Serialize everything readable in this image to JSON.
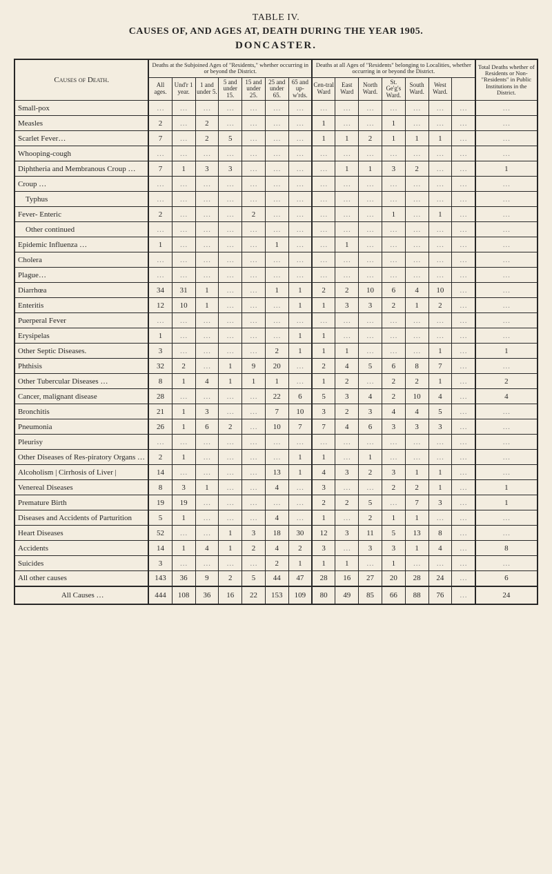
{
  "title": {
    "line1": "TABLE IV.",
    "line2": "CAUSES OF, AND AGES AT, DEATH DURING THE YEAR 1905.",
    "line3": "DONCASTER."
  },
  "headers": {
    "cause": "Causes of Death.",
    "group1": "Deaths at the Subjoined Ages of \"Residents,\" whether occurring in or beyond the District.",
    "group2": "Deaths at all Ages of \"Residents\" belonging to Localities, whether occurring in or beyond the District.",
    "group3": "Total Deaths whether of Residents or Non-\"Residents\" in Public Institutions in the District.",
    "ages": [
      "All ages.",
      "Und'r 1 year.",
      "1 and under 5.",
      "5 and under 15.",
      "15 and under 25.",
      "25 and under 65.",
      "65 and up-w'rds."
    ],
    "wards": [
      "Cen-tral Ward",
      "East Ward",
      "North Ward.",
      "St. Ge'g's Ward.",
      "South Ward.",
      "West Ward.",
      ""
    ]
  },
  "rows": [
    {
      "c": "Small-pox",
      "v": [
        "",
        "",
        "",
        "",
        "",
        "",
        "",
        "",
        "",
        "",
        "",
        "",
        "",
        "",
        ""
      ]
    },
    {
      "c": "Measles",
      "v": [
        "2",
        "",
        "2",
        "",
        "",
        "",
        "",
        "1",
        "",
        "",
        "1",
        "",
        "",
        "",
        ""
      ]
    },
    {
      "c": "Scarlet Fever…",
      "v": [
        "7",
        "",
        "2",
        "5",
        "",
        "",
        "",
        "1",
        "1",
        "2",
        "1",
        "1",
        "1",
        "",
        ""
      ]
    },
    {
      "c": "Whooping-cough",
      "v": [
        "",
        "",
        "",
        "",
        "",
        "",
        "",
        "",
        "",
        "",
        "",
        "",
        "",
        "",
        ""
      ]
    },
    {
      "c": "Diphtheria and Membranous Croup …",
      "v": [
        "7",
        "1",
        "3",
        "3",
        "",
        "",
        "",
        "",
        "1",
        "1",
        "3",
        "2",
        "",
        "",
        "1"
      ]
    },
    {
      "c": "Croup …",
      "v": [
        "",
        "",
        "",
        "",
        "",
        "",
        "",
        "",
        "",
        "",
        "",
        "",
        "",
        "",
        ""
      ]
    },
    {
      "c": "    Typhus",
      "v": [
        "",
        "",
        "",
        "",
        "",
        "",
        "",
        "",
        "",
        "",
        "",
        "",
        "",
        "",
        ""
      ]
    },
    {
      "c": "Fever- Enteric",
      "v": [
        "2",
        "",
        "",
        "",
        "2",
        "",
        "",
        "",
        "",
        "",
        "1",
        "",
        "1",
        "",
        ""
      ]
    },
    {
      "c": "    Other continued",
      "v": [
        "",
        "",
        "",
        "",
        "",
        "",
        "",
        "",
        "",
        "",
        "",
        "",
        "",
        "",
        ""
      ]
    },
    {
      "c": "Epidemic Influenza …",
      "v": [
        "1",
        "",
        "",
        "",
        "",
        "1",
        "",
        "",
        "1",
        "",
        "",
        "",
        "",
        "",
        ""
      ]
    },
    {
      "c": "Cholera",
      "v": [
        "",
        "",
        "",
        "",
        "",
        "",
        "",
        "",
        "",
        "",
        "",
        "",
        "",
        "",
        ""
      ]
    },
    {
      "c": "Plague…",
      "v": [
        "",
        "",
        "",
        "",
        "",
        "",
        "",
        "",
        "",
        "",
        "",
        "",
        "",
        "",
        ""
      ]
    },
    {
      "c": "Diarrhœa",
      "v": [
        "34",
        "31",
        "1",
        "",
        "",
        "1",
        "1",
        "2",
        "2",
        "10",
        "6",
        "4",
        "10",
        "",
        ""
      ]
    },
    {
      "c": "Enteritis",
      "v": [
        "12",
        "10",
        "1",
        "",
        "",
        "",
        "1",
        "1",
        "3",
        "3",
        "2",
        "1",
        "2",
        "",
        ""
      ]
    },
    {
      "c": "Puerperal Fever",
      "v": [
        "",
        "",
        "",
        "",
        "",
        "",
        "",
        "",
        "",
        "",
        "",
        "",
        "",
        "",
        ""
      ]
    },
    {
      "c": "Erysipelas",
      "v": [
        "1",
        "",
        "",
        "",
        "",
        "",
        "1",
        "1",
        "",
        "",
        "",
        "",
        "",
        "",
        ""
      ]
    },
    {
      "c": "Other Septic Diseases.",
      "v": [
        "3",
        "",
        "",
        "",
        "",
        "2",
        "1",
        "1",
        "1",
        "",
        "",
        "",
        "1",
        "",
        "1"
      ]
    },
    {
      "c": "Phthisis",
      "v": [
        "32",
        "2",
        "",
        "1",
        "9",
        "20",
        "",
        "2",
        "4",
        "5",
        "6",
        "8",
        "7",
        "",
        ""
      ]
    },
    {
      "c": "Other Tubercular Diseases …",
      "v": [
        "8",
        "1",
        "4",
        "1",
        "1",
        "1",
        "",
        "1",
        "2",
        "",
        "2",
        "2",
        "1",
        "",
        "2"
      ]
    },
    {
      "c": "Cancer, malignant disease",
      "v": [
        "28",
        "",
        "",
        "",
        "",
        "22",
        "6",
        "5",
        "3",
        "4",
        "2",
        "10",
        "4",
        "",
        "4"
      ]
    },
    {
      "c": "Bronchitis",
      "v": [
        "21",
        "1",
        "3",
        "",
        "",
        "7",
        "10",
        "3",
        "2",
        "3",
        "4",
        "4",
        "5",
        "",
        ""
      ]
    },
    {
      "c": "Pneumonia",
      "v": [
        "26",
        "1",
        "6",
        "2",
        "",
        "10",
        "7",
        "7",
        "4",
        "6",
        "3",
        "3",
        "3",
        "",
        ""
      ]
    },
    {
      "c": "Pleurisy",
      "v": [
        "",
        "",
        "",
        "",
        "",
        "",
        "",
        "",
        "",
        "",
        "",
        "",
        "",
        "",
        ""
      ]
    },
    {
      "c": "Other Diseases of Res-piratory Organs …",
      "v": [
        "2",
        "1",
        "",
        "",
        "",
        "",
        "1",
        "1",
        "",
        "1",
        "",
        "",
        "",
        "",
        ""
      ]
    },
    {
      "c": "Alcoholism | Cirrhosis of Liver |",
      "v": [
        "14",
        "",
        "",
        "",
        "",
        "13",
        "1",
        "4",
        "3",
        "2",
        "3",
        "1",
        "1",
        "",
        ""
      ]
    },
    {
      "c": "Venereal Diseases",
      "v": [
        "8",
        "3",
        "1",
        "",
        "",
        "4",
        "",
        "3",
        "",
        "",
        "2",
        "2",
        "1",
        "",
        "1"
      ]
    },
    {
      "c": "Premature Birth",
      "v": [
        "19",
        "19",
        "",
        "",
        "",
        "",
        "",
        "2",
        "2",
        "5",
        "",
        "7",
        "3",
        "",
        "1"
      ]
    },
    {
      "c": "Diseases and Accidents of Parturition",
      "v": [
        "5",
        "1",
        "",
        "",
        "",
        "4",
        "",
        "1",
        "",
        "2",
        "1",
        "1",
        "",
        "",
        ""
      ]
    },
    {
      "c": "Heart Diseases",
      "v": [
        "52",
        "",
        "",
        "1",
        "3",
        "18",
        "30",
        "12",
        "3",
        "11",
        "5",
        "13",
        "8",
        "",
        ""
      ]
    },
    {
      "c": "Accidents",
      "v": [
        "14",
        "1",
        "4",
        "1",
        "2",
        "4",
        "2",
        "3",
        "",
        "3",
        "3",
        "1",
        "4",
        "",
        "8"
      ]
    },
    {
      "c": "Suicides",
      "v": [
        "3",
        "",
        "",
        "",
        "",
        "2",
        "1",
        "1",
        "1",
        "",
        "1",
        "",
        "",
        "",
        ""
      ]
    },
    {
      "c": "All other causes",
      "v": [
        "143",
        "36",
        "9",
        "2",
        "5",
        "44",
        "47",
        "28",
        "16",
        "27",
        "20",
        "28",
        "24",
        "",
        "6"
      ]
    }
  ],
  "total": {
    "c": "All Causes …",
    "v": [
      "444",
      "108",
      "36",
      "16",
      "22",
      "153",
      "109",
      "80",
      "49",
      "85",
      "66",
      "88",
      "76",
      "",
      "24"
    ]
  }
}
